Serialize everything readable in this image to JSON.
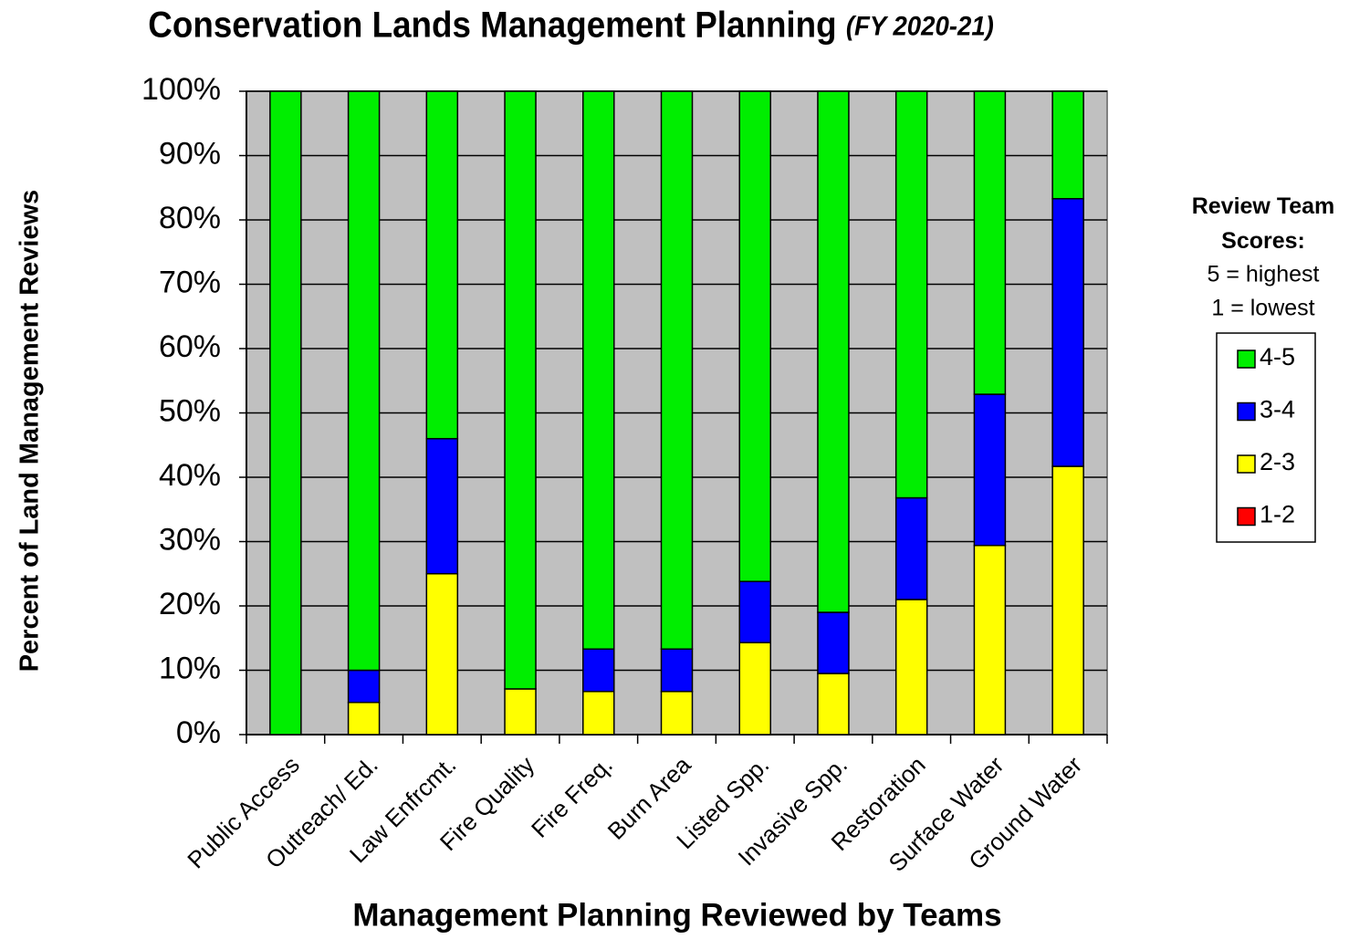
{
  "chart_data": {
    "type": "stacked_bar",
    "title": "Conservation Lands Management Planning",
    "subtitle": "(FY 2020-21)",
    "x_label": "Management Planning Reviewed by Teams",
    "y_label": "Percent of Land Management Reviews",
    "legend_title": "Review Team Scores:",
    "legend_notes": [
      "5 = highest",
      "1 = lowest"
    ],
    "legend_position": "right",
    "grid": true,
    "background": "#c0c0c0",
    "categories": [
      "Public Access",
      "Outreach/ Ed.",
      "Law Enfrcmt.",
      "Fire Quality",
      "Fire Freq.",
      "Burn Area",
      "Listed Spp.",
      "Invasive Spp.",
      "Restoration",
      "Surface Water",
      "Ground Water"
    ],
    "series": [
      {
        "name": "1-2",
        "color": "#ff0000",
        "values": [
          0,
          0,
          0,
          0,
          0,
          0,
          0,
          0,
          0,
          0,
          0
        ]
      },
      {
        "name": "2-3",
        "color": "#ffff00",
        "values": [
          0,
          5,
          25,
          7.1,
          6.7,
          6.7,
          14.3,
          9.5,
          21,
          29.4,
          41.7
        ]
      },
      {
        "name": "3-4",
        "color": "#0000ff",
        "values": [
          0,
          5,
          21,
          0,
          6.6,
          6.6,
          9.5,
          9.5,
          15.8,
          23.5,
          41.6
        ]
      },
      {
        "name": "4-5",
        "color": "#00ee00",
        "values": [
          100,
          90,
          54,
          92.9,
          86.7,
          86.7,
          76.2,
          81,
          63.2,
          47.1,
          16.7
        ]
      }
    ],
    "ylim": [
      0,
      100
    ],
    "yticks": [
      {
        "value": 0,
        "label": "0%"
      },
      {
        "value": 10,
        "label": "10%"
      },
      {
        "value": 20,
        "label": "20%"
      },
      {
        "value": 30,
        "label": "30%"
      },
      {
        "value": 40,
        "label": "40%"
      },
      {
        "value": 50,
        "label": "50%"
      },
      {
        "value": 60,
        "label": "60%"
      },
      {
        "value": 70,
        "label": "70%"
      },
      {
        "value": 80,
        "label": "80%"
      },
      {
        "value": 90,
        "label": "90%"
      },
      {
        "value": 100,
        "label": "100%"
      }
    ]
  }
}
